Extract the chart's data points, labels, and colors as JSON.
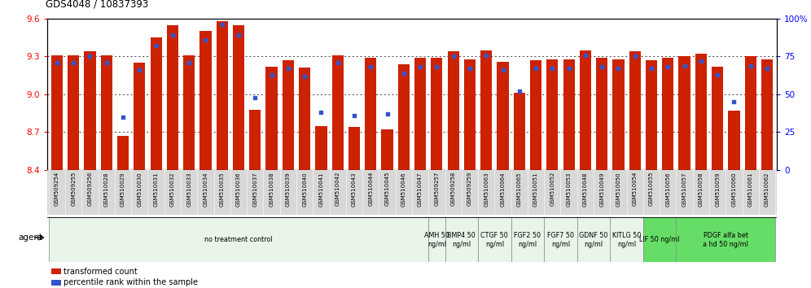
{
  "title": "GDS4048 / 10837393",
  "bar_color": "#CC2200",
  "dot_color": "#3355CC",
  "ylim_left": [
    8.4,
    9.6
  ],
  "ylim_right": [
    0,
    100
  ],
  "yticks_left": [
    8.4,
    8.7,
    9.0,
    9.3,
    9.6
  ],
  "yticks_right": [
    0,
    25,
    50,
    75,
    100
  ],
  "samples": [
    "GSM509254",
    "GSM509255",
    "GSM509256",
    "GSM510028",
    "GSM510029",
    "GSM510030",
    "GSM510031",
    "GSM510032",
    "GSM510033",
    "GSM510034",
    "GSM510035",
    "GSM510036",
    "GSM510037",
    "GSM510038",
    "GSM510039",
    "GSM510040",
    "GSM510041",
    "GSM510042",
    "GSM510043",
    "GSM510044",
    "GSM510045",
    "GSM510046",
    "GSM510047",
    "GSM509257",
    "GSM509258",
    "GSM509259",
    "GSM510063",
    "GSM510064",
    "GSM510065",
    "GSM510051",
    "GSM510052",
    "GSM510053",
    "GSM510048",
    "GSM510049",
    "GSM510050",
    "GSM510054",
    "GSM510055",
    "GSM510056",
    "GSM510057",
    "GSM510058",
    "GSM510059",
    "GSM510060",
    "GSM510061",
    "GSM510062"
  ],
  "bar_values": [
    9.31,
    9.31,
    9.34,
    9.31,
    8.67,
    9.25,
    9.45,
    9.55,
    9.31,
    9.5,
    9.58,
    9.55,
    8.88,
    9.22,
    9.27,
    9.21,
    8.75,
    9.31,
    8.74,
    9.29,
    8.72,
    9.24,
    9.29,
    9.29,
    9.34,
    9.28,
    9.35,
    9.26,
    9.01,
    9.27,
    9.28,
    9.28,
    9.35,
    9.29,
    9.28,
    9.34,
    9.27,
    9.29,
    9.3,
    9.32,
    9.22,
    8.87,
    9.3,
    9.28
  ],
  "dot_values": [
    71,
    71,
    75,
    71,
    35,
    66,
    82,
    89,
    71,
    86,
    96,
    89,
    48,
    63,
    67,
    62,
    38,
    71,
    36,
    68,
    37,
    64,
    68,
    68,
    75,
    67,
    76,
    66,
    52,
    67,
    67,
    67,
    76,
    68,
    67,
    75,
    67,
    68,
    69,
    72,
    63,
    45,
    69,
    67
  ],
  "agent_groups": [
    {
      "label": "no treatment control",
      "start": 0,
      "end": 23,
      "color": "#e8f5e8",
      "bright": false
    },
    {
      "label": "AMH 50\nng/ml",
      "start": 23,
      "end": 24,
      "color": "#e8f5e8",
      "bright": false
    },
    {
      "label": "BMP4 50\nng/ml",
      "start": 24,
      "end": 26,
      "color": "#e8f5e8",
      "bright": false
    },
    {
      "label": "CTGF 50\nng/ml",
      "start": 26,
      "end": 28,
      "color": "#e8f5e8",
      "bright": false
    },
    {
      "label": "FGF2 50\nng/ml",
      "start": 28,
      "end": 30,
      "color": "#e8f5e8",
      "bright": false
    },
    {
      "label": "FGF7 50\nng/ml",
      "start": 30,
      "end": 32,
      "color": "#e8f5e8",
      "bright": false
    },
    {
      "label": "GDNF 50\nng/ml",
      "start": 32,
      "end": 34,
      "color": "#e8f5e8",
      "bright": false
    },
    {
      "label": "KITLG 50\nng/ml",
      "start": 34,
      "end": 36,
      "color": "#e8f5e8",
      "bright": false
    },
    {
      "label": "LIF 50 ng/ml",
      "start": 36,
      "end": 38,
      "color": "#66dd66",
      "bright": true
    },
    {
      "label": "PDGF alfa bet\na hd 50 ng/ml",
      "start": 38,
      "end": 44,
      "color": "#66dd66",
      "bright": true
    }
  ],
  "legend_items": [
    {
      "label": "transformed count",
      "color": "#CC2200"
    },
    {
      "label": "percentile rank within the sample",
      "color": "#3355CC"
    }
  ],
  "bg_color": "#f0f0f0",
  "tick_bg_color": "#d8d8d8"
}
